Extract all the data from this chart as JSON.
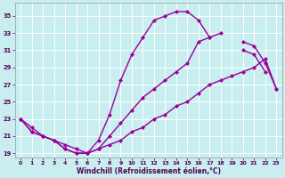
{
  "xlabel": "Windchill (Refroidissement éolien,°C)",
  "xlim": [
    -0.5,
    23.5
  ],
  "ylim": [
    18.5,
    36.5
  ],
  "yticks": [
    19,
    21,
    23,
    25,
    27,
    29,
    31,
    33,
    35
  ],
  "xticks": [
    0,
    1,
    2,
    3,
    4,
    5,
    6,
    7,
    8,
    9,
    10,
    11,
    12,
    13,
    14,
    15,
    16,
    17,
    18,
    19,
    20,
    21,
    22,
    23
  ],
  "bg_color": "#c8eef0",
  "grid_color": "#b0d8dc",
  "line_color": "#990099",
  "curve1_y": [
    23.0,
    22.0,
    21.0,
    20.5,
    20.0,
    19.5,
    19.0,
    20.5,
    23.5,
    27.5,
    30.5,
    32.5,
    34.5,
    35.0,
    35.5,
    35.5,
    34.5,
    32.5,
    null,
    null,
    31.0,
    30.5,
    28.5,
    null
  ],
  "curve2_y": [
    23.0,
    21.5,
    21.0,
    20.5,
    19.5,
    19.0,
    19.0,
    19.5,
    20.0,
    20.5,
    21.5,
    22.0,
    23.0,
    23.5,
    24.5,
    25.0,
    26.0,
    27.0,
    27.5,
    28.0,
    28.5,
    29.0,
    30.0,
    26.5
  ],
  "curve3_y": [
    23.0,
    21.5,
    21.0,
    20.5,
    19.5,
    19.0,
    19.0,
    19.5,
    21.0,
    22.5,
    24.0,
    25.5,
    26.5,
    27.5,
    28.5,
    29.5,
    32.0,
    32.5,
    33.0,
    null,
    32.0,
    31.5,
    29.5,
    26.5
  ]
}
